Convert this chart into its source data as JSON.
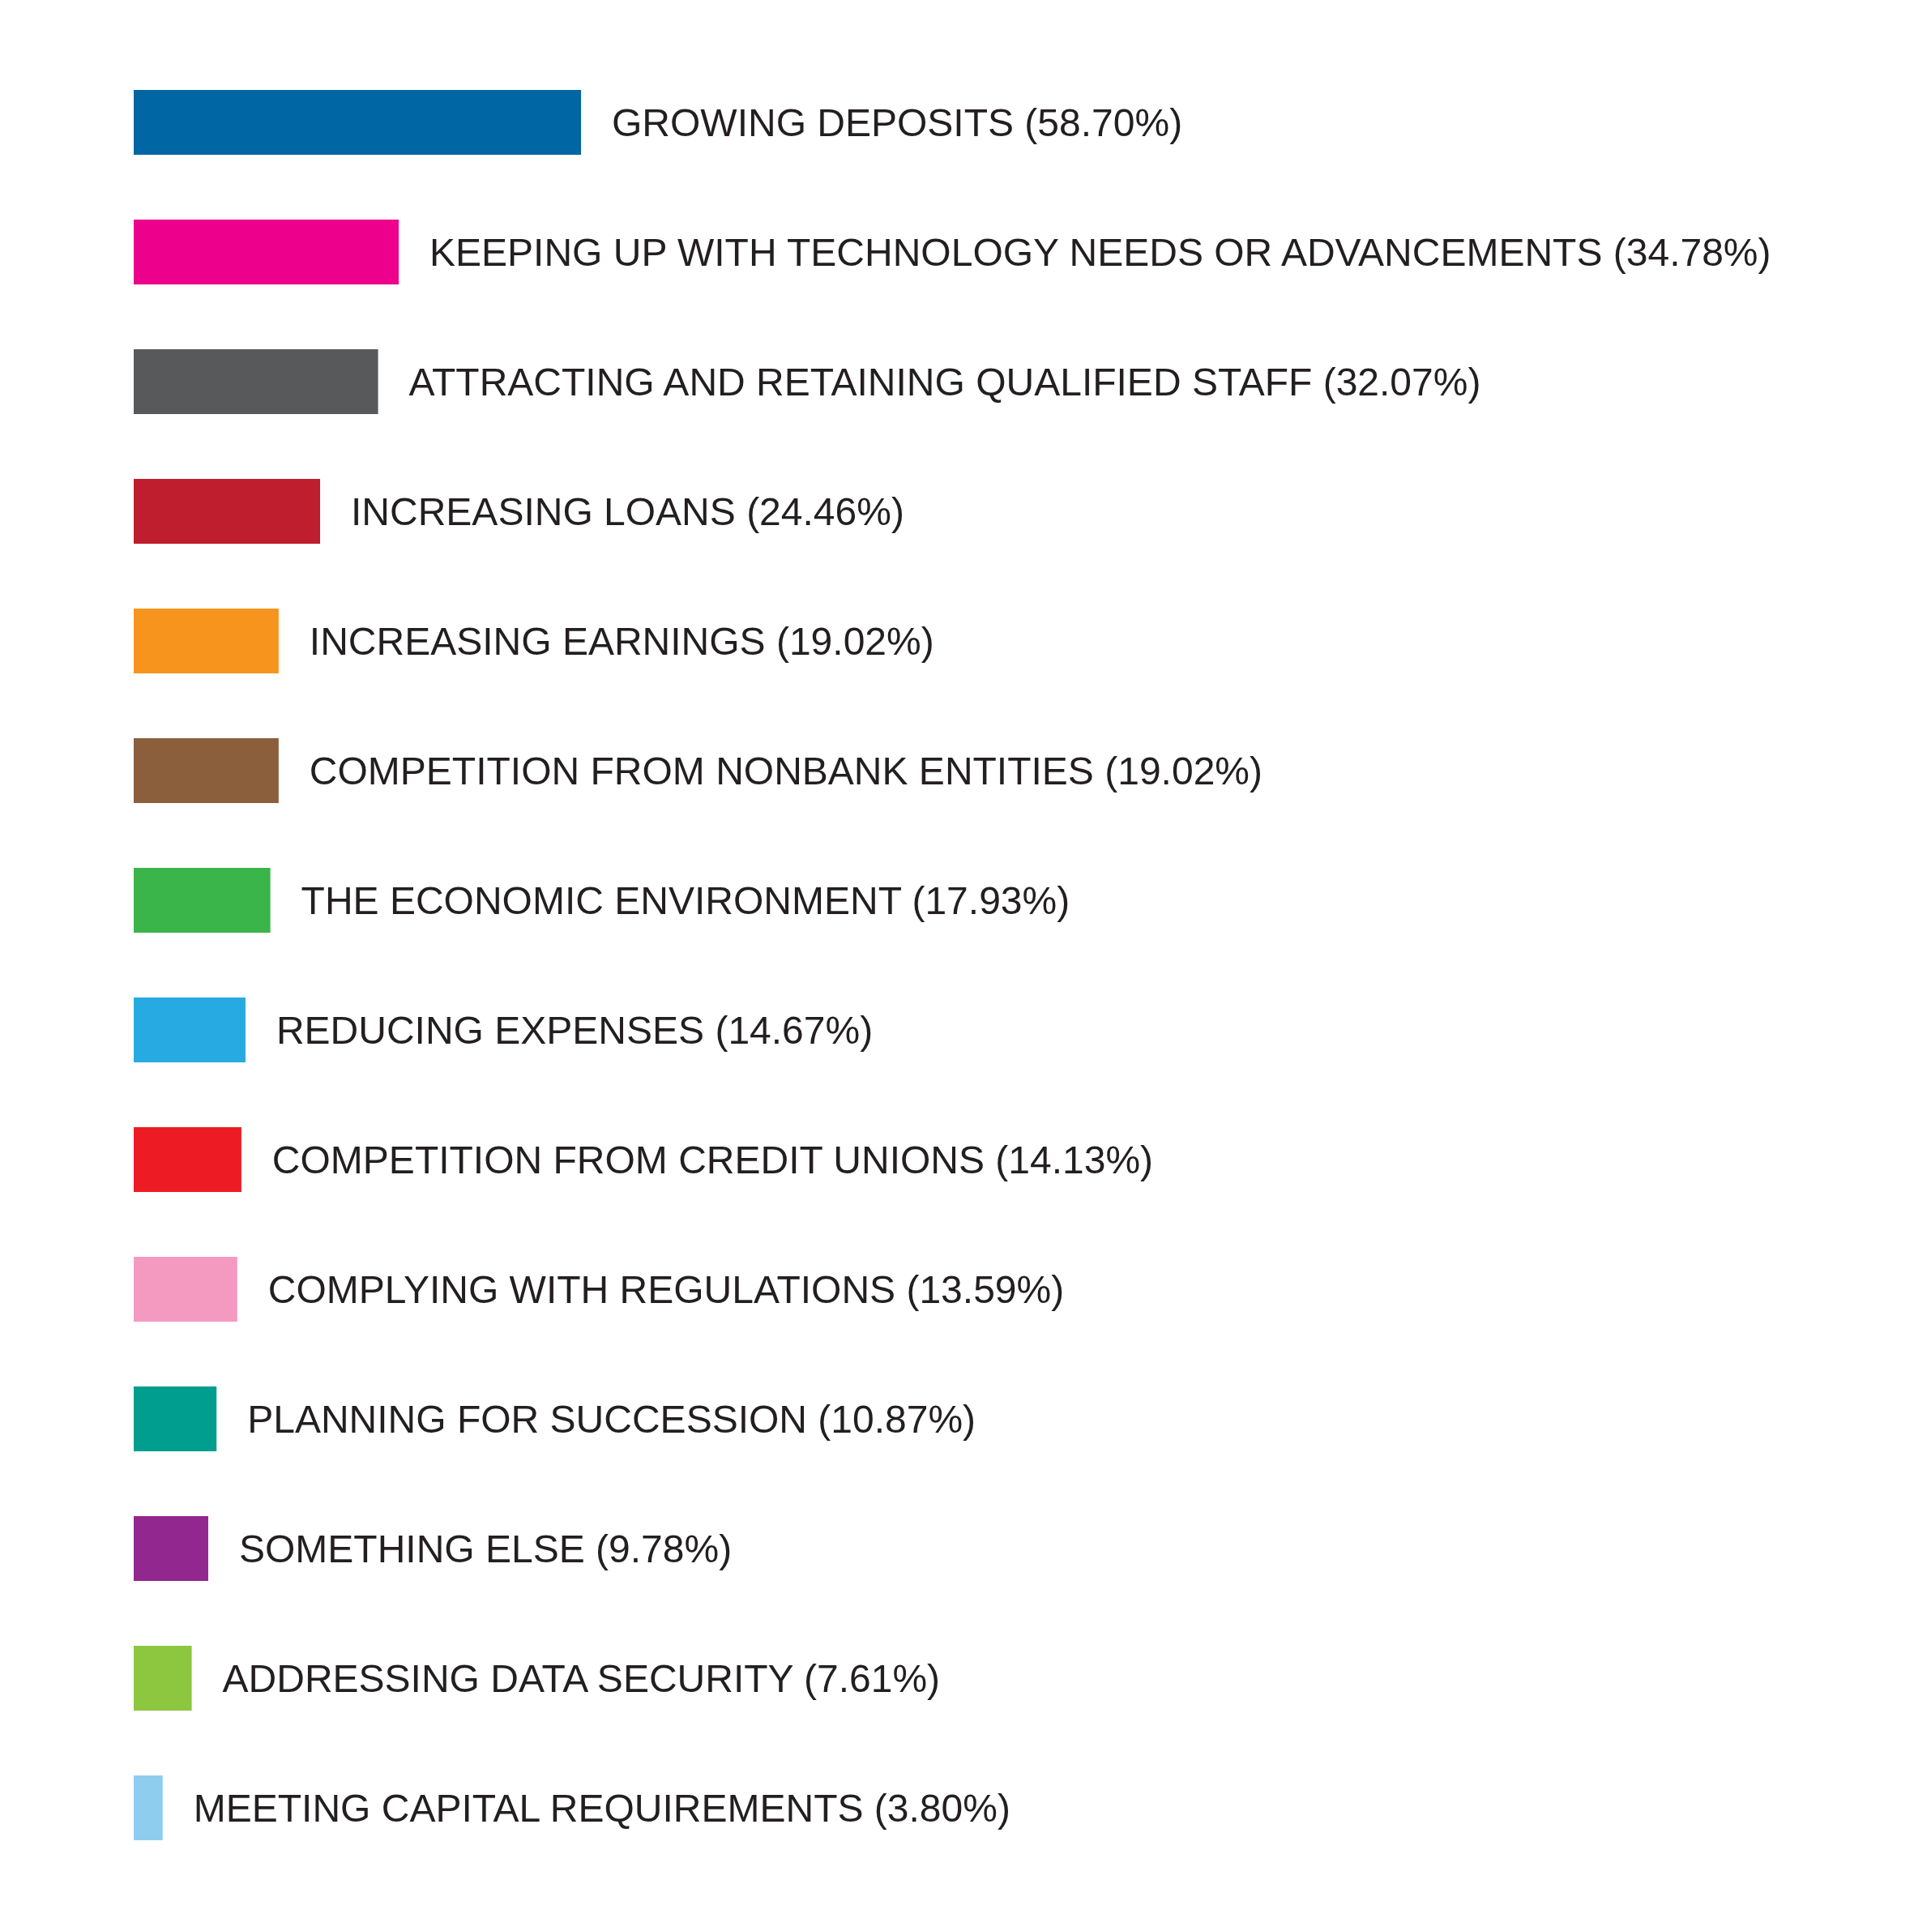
{
  "chart_data": {
    "type": "bar",
    "orientation": "horizontal",
    "categories": [
      null,
      null,
      null,
      null,
      null,
      null,
      null,
      null,
      null,
      null,
      null,
      null,
      null,
      null
    ],
    "values": [
      58.7,
      34.78,
      32.07,
      24.46,
      19.02,
      19.02,
      17.93,
      14.67,
      14.13,
      13.59,
      10.87,
      9.78,
      7.61,
      3.8
    ],
    "value_labels": [
      "GROWING DEPOSITS (58.70%)",
      "KEEPING UP WITH TECHNOLOGY NEEDS OR ADVANCEMENTS (34.78%)",
      "ATTRACTING AND RETAINING QUALIFIED STAFF (32.07%)",
      "INCREASING LOANS (24.46%)",
      "INCREASING EARNINGS (19.02%)",
      "COMPETITION FROM NONBANK ENTITIES (19.02%)",
      "THE ECONOMIC ENVIRONMENT (17.93%)",
      "REDUCING EXPENSES (14.67%)",
      "COMPETITION FROM CREDIT UNIONS (14.13%)",
      "COMPLYING WITH REGULATIONS (13.59%)",
      "PLANNING FOR SUCCESSION (10.87%)",
      "SOMETHING ELSE (9.78%)",
      "ADDRESSING DATA SECURITY (7.61%)",
      "MEETING CAPITAL REQUIREMENTS (3.80%)"
    ],
    "colors": [
      "#0066a4",
      "#ec008c",
      "#58595b",
      "#be1e2d",
      "#f7941d",
      "#8b5e3c",
      "#39b54a",
      "#27aae1",
      "#ed1c24",
      "#f49ac1",
      "#009e8e",
      "#92278f",
      "#8dc63f",
      "#8fcdef"
    ]
  }
}
